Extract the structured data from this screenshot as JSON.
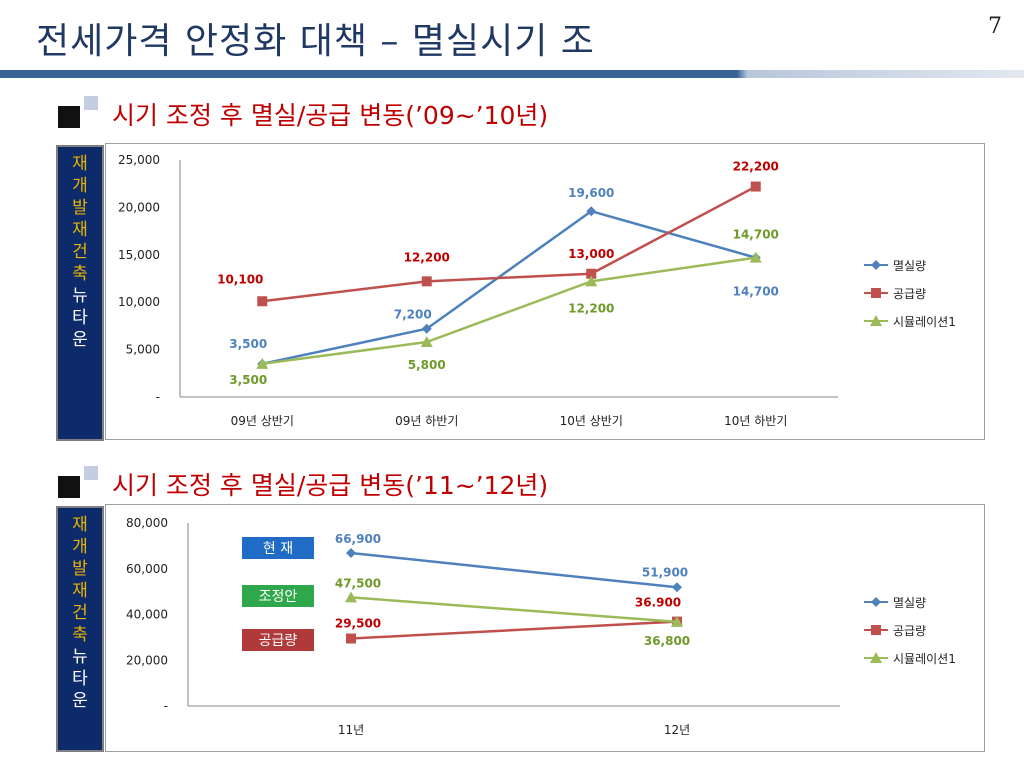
{
  "slide": {
    "title": "전세가격 안정화 대책 – 멸실시기 조",
    "page_number": "7"
  },
  "sidebar_chars": [
    "재",
    "개",
    "발",
    "재",
    "건",
    "축",
    "뉴",
    "타",
    "운"
  ],
  "colors": {
    "blue": "#4f81bd",
    "red": "#c0504d",
    "green": "#9bbb59",
    "title": "#1f3864",
    "side_box": "#0d2a6b"
  },
  "chart_data": [
    {
      "type": "line",
      "heading": "시기 조정 후 멸실/공급 변동(’09~’10년)",
      "categories": [
        "09년 상반기",
        "09년 하반기",
        "10년 상반기",
        "10년 하반기"
      ],
      "ylim": [
        0,
        25000
      ],
      "yticks": [
        "-",
        "5,000",
        "10,000",
        "15,000",
        "20,000",
        "25,000"
      ],
      "series": [
        {
          "name": "멸실량",
          "color": "#4f81bd",
          "marker": "diamond",
          "values": [
            3500,
            7200,
            19600,
            14700
          ],
          "labels": [
            "3,500",
            "7,200",
            "19,600",
            "14,700"
          ]
        },
        {
          "name": "공급량",
          "color": "#c0504d",
          "marker": "square",
          "values": [
            10100,
            12200,
            13000,
            22200
          ],
          "labels": [
            "10,100",
            "12,200",
            "13,000",
            "22,200"
          ]
        },
        {
          "name": "시뮬레이션1",
          "color": "#9bbb59",
          "marker": "triangle",
          "values": [
            3500,
            5800,
            12200,
            14700
          ],
          "labels": [
            "3,500",
            "5,800",
            "12,200",
            "14,700"
          ]
        }
      ],
      "legend": "right",
      "grid": false
    },
    {
      "type": "line",
      "heading": "시기 조정 후 멸실/공급 변동(’11~’12년)",
      "categories": [
        "11년",
        "12년"
      ],
      "ylim": [
        0,
        80000
      ],
      "yticks": [
        "-",
        "20,000",
        "40,000",
        "60,000",
        "80,000"
      ],
      "series": [
        {
          "name": "멸실량",
          "color": "#4f81bd",
          "marker": "diamond",
          "values": [
            66900,
            51900
          ],
          "labels": [
            "66,900",
            "51,900"
          ]
        },
        {
          "name": "공급량",
          "color": "#c0504d",
          "marker": "square",
          "values": [
            29500,
            36900
          ],
          "labels": [
            "29,500",
            "36.900"
          ]
        },
        {
          "name": "시뮬레이션1",
          "color": "#9bbb59",
          "marker": "triangle",
          "values": [
            47500,
            36800
          ],
          "labels": [
            "47,500",
            "36,800"
          ]
        }
      ],
      "annotations": [
        {
          "text": "현 재",
          "color": "#1f6bc5"
        },
        {
          "text": "조정안",
          "color": "#2ea84a"
        },
        {
          "text": "공급량",
          "color": "#b0393a"
        }
      ],
      "legend": "right",
      "grid": false
    }
  ]
}
